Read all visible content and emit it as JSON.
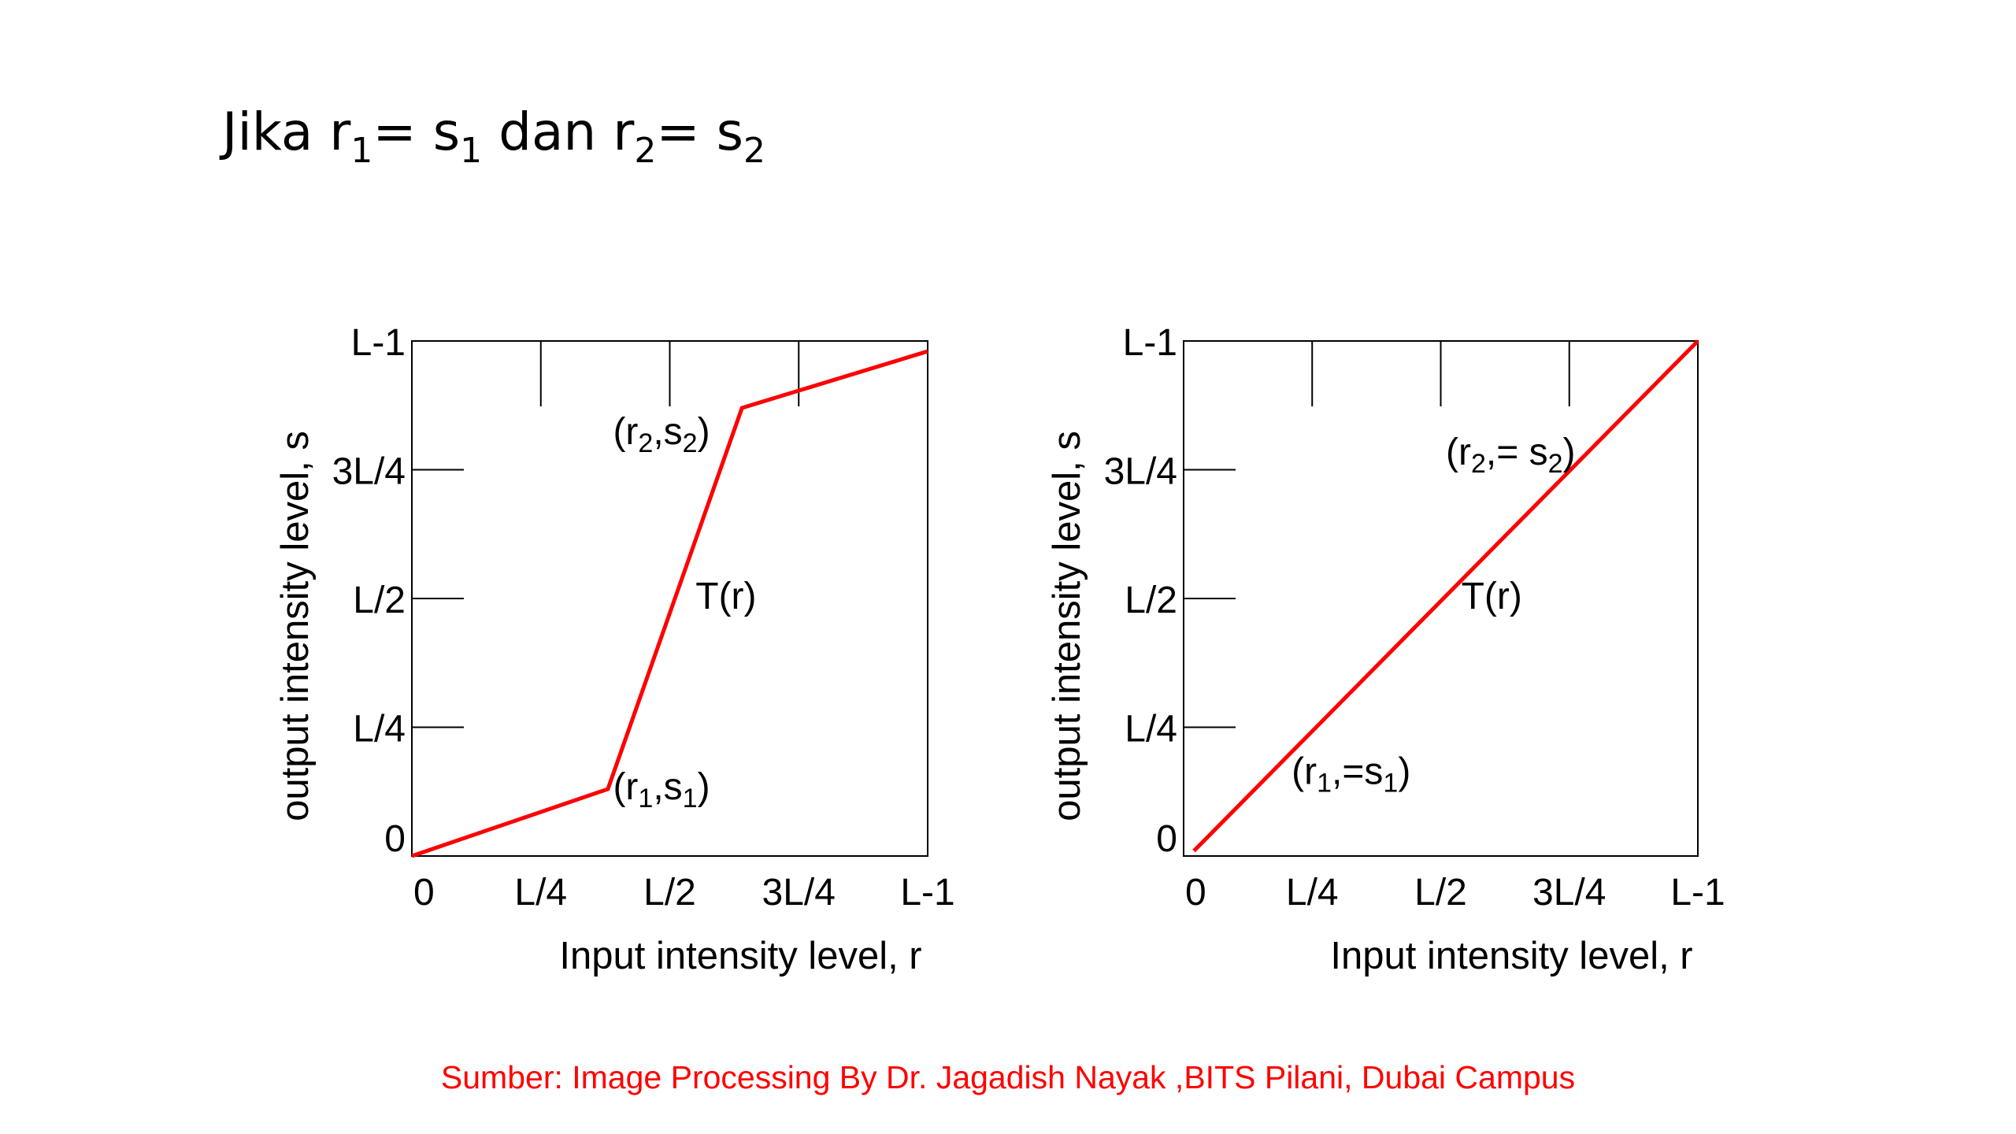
{
  "heading": {
    "prefix": "Jika r",
    "sub1": "1",
    "eq1": "= s",
    "sub2": "1",
    "mid": " dan r",
    "sub3": "2",
    "eq2": "= s",
    "sub4": "2"
  },
  "source": {
    "text": "Sumber: Image Processing By Dr. Jagadish Nayak ,BITS Pilani, Dubai Campus",
    "color": "#ff0000"
  },
  "chart_data": [
    {
      "type": "line",
      "xlabel": "Input intensity level, r",
      "ylabel": "output intensity level, s",
      "xlim": [
        0,
        1
      ],
      "ylim": [
        0,
        1
      ],
      "x_ticks": [
        {
          "label": "0",
          "value": 0
        },
        {
          "label": "L/4",
          "value": 0.25
        },
        {
          "label": "L/2",
          "value": 0.5
        },
        {
          "label": "3L/4",
          "value": 0.75
        },
        {
          "label": "L-1",
          "value": 1
        }
      ],
      "y_ticks": [
        {
          "label": "0",
          "value": 0
        },
        {
          "label": "L/4",
          "value": 0.25
        },
        {
          "label": "L/2",
          "value": 0.5
        },
        {
          "label": "3L/4",
          "value": 0.75
        },
        {
          "label": "L-1",
          "value": 1
        }
      ],
      "series": [
        {
          "color": "#ff0000",
          "points": [
            [
              0,
              0
            ],
            [
              0.38,
              0.13
            ],
            [
              0.64,
              0.87
            ],
            [
              1,
              0.98
            ]
          ]
        }
      ],
      "annotations": [
        {
          "base": "(r",
          "s1": "2",
          "mid": ",s",
          "s2": "2",
          "end": ")",
          "x": 0.39,
          "y": 0.8
        },
        {
          "base": "T(r)",
          "x": 0.55,
          "y": 0.48
        },
        {
          "base": "(r",
          "s1": "1",
          "mid": ",s",
          "s2": "1",
          "end": ")",
          "x": 0.39,
          "y": 0.11
        }
      ]
    },
    {
      "type": "line",
      "xlabel": "Input intensity level, r",
      "ylabel": "output intensity level, s",
      "xlim": [
        0,
        1
      ],
      "ylim": [
        0,
        1
      ],
      "x_ticks": [
        {
          "label": "0",
          "value": 0
        },
        {
          "label": "L/4",
          "value": 0.25
        },
        {
          "label": "L/2",
          "value": 0.5
        },
        {
          "label": "3L/4",
          "value": 0.75
        },
        {
          "label": "L-1",
          "value": 1
        }
      ],
      "y_ticks": [
        {
          "label": "0",
          "value": 0
        },
        {
          "label": "L/4",
          "value": 0.25
        },
        {
          "label": "L/2",
          "value": 0.5
        },
        {
          "label": "3L/4",
          "value": 0.75
        },
        {
          "label": "L-1",
          "value": 1
        }
      ],
      "series": [
        {
          "color": "#ff0000",
          "points": [
            [
              0.02,
              0.01
            ],
            [
              1,
              1
            ]
          ]
        }
      ],
      "annotations": [
        {
          "base": "(r",
          "s1": "2",
          "mid": ",= s",
          "s2": "2",
          "end": ")",
          "x": 0.51,
          "y": 0.76
        },
        {
          "base": "T(r)",
          "x": 0.54,
          "y": 0.48
        },
        {
          "base": "(r",
          "s1": "1",
          "mid": ",=s",
          "s2": "1",
          "end": ")",
          "x": 0.21,
          "y": 0.14
        }
      ]
    }
  ]
}
